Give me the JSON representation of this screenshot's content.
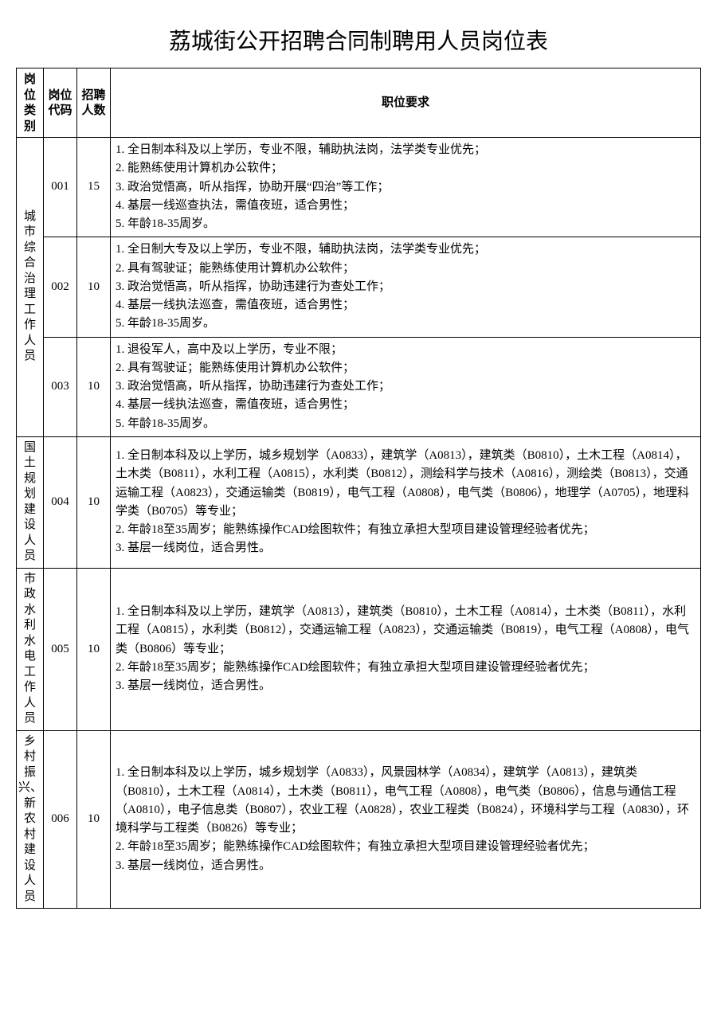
{
  "title": "荔城街公开招聘合同制聘用人员岗位表",
  "headers": {
    "category": "岗位类别",
    "code": "岗位代码",
    "count": "招聘人数",
    "req": "职位要求"
  },
  "groups": [
    {
      "category": "城市综合治理工作人员",
      "rows": [
        {
          "code": "001",
          "count": "15",
          "req": [
            "1. 全日制本科及以上学历，专业不限，辅助执法岗，法学类专业优先；",
            "2. 能熟练使用计算机办公软件；",
            "3. 政治觉悟高，听从指挥，协助开展“四治”等工作；",
            "4. 基层一线巡查执法，需值夜班，适合男性；",
            "5. 年龄18-35周岁。"
          ]
        },
        {
          "code": "002",
          "count": "10",
          "req": [
            "1. 全日制大专及以上学历，专业不限，辅助执法岗，法学类专业优先；",
            "2. 具有驾驶证；能熟练使用计算机办公软件；",
            "3. 政治觉悟高，听从指挥，协助违建行为查处工作；",
            "4. 基层一线执法巡查，需值夜班，适合男性；",
            "5. 年龄18-35周岁。"
          ]
        },
        {
          "code": "003",
          "count": "10",
          "req": [
            "1. 退役军人，高中及以上学历，专业不限；",
            "2. 具有驾驶证；能熟练使用计算机办公软件；",
            "3. 政治觉悟高，听从指挥，协助违建行为查处工作；",
            "4. 基层一线执法巡查，需值夜班，适合男性；",
            "5. 年龄18-35周岁。"
          ]
        }
      ]
    },
    {
      "category": "国土规划建设人员",
      "rows": [
        {
          "code": "004",
          "count": "10",
          "req": [
            "1. 全日制本科及以上学历，城乡规划学（A0833），建筑学（A0813），建筑类（B0810），土木工程（A0814），土木类（B0811），水利工程（A0815），水利类（B0812），测绘科学与技术（A0816），测绘类（B0813），交通运输工程（A0823），交通运输类（B0819），电气工程（A0808），电气类（B0806），地理学（A0705），地理科学类（B0705）等专业；",
            "2. 年龄18至35周岁；能熟练操作CAD绘图软件；有独立承担大型项目建设管理经验者优先；",
            "3. 基层一线岗位，适合男性。"
          ]
        }
      ]
    },
    {
      "category": "市政水利水电工作人员",
      "rows": [
        {
          "code": "005",
          "count": "10",
          "req": [
            "1. 全日制本科及以上学历，建筑学（A0813），建筑类（B0810），土木工程（A0814），土木类（B0811），水利工程（A0815），水利类（B0812），交通运输工程（A0823），交通运输类（B0819），电气工程（A0808），电气类（B0806）等专业；",
            "2. 年龄18至35周岁；能熟练操作CAD绘图软件；有独立承担大型项目建设管理经验者优先；",
            "3. 基层一线岗位，适合男性。"
          ]
        }
      ]
    },
    {
      "category": "乡村振兴、新农村建设人员",
      "rows": [
        {
          "code": "006",
          "count": "10",
          "req": [
            "1. 全日制本科及以上学历，城乡规划学（A0833），风景园林学（A0834），建筑学（A0813），建筑类（B0810），土木工程（A0814），土木类（B0811），电气工程（A0808），电气类（B0806），信息与通信工程（A0810），电子信息类（B0807），农业工程（A0828），农业工程类（B0824），环境科学与工程（A0830），环境科学与工程类（B0826）等专业；",
            "2. 年龄18至35周岁；能熟练操作CAD绘图软件；有独立承担大型项目建设管理经验者优先；",
            "3. 基层一线岗位，适合男性。"
          ]
        }
      ]
    }
  ]
}
